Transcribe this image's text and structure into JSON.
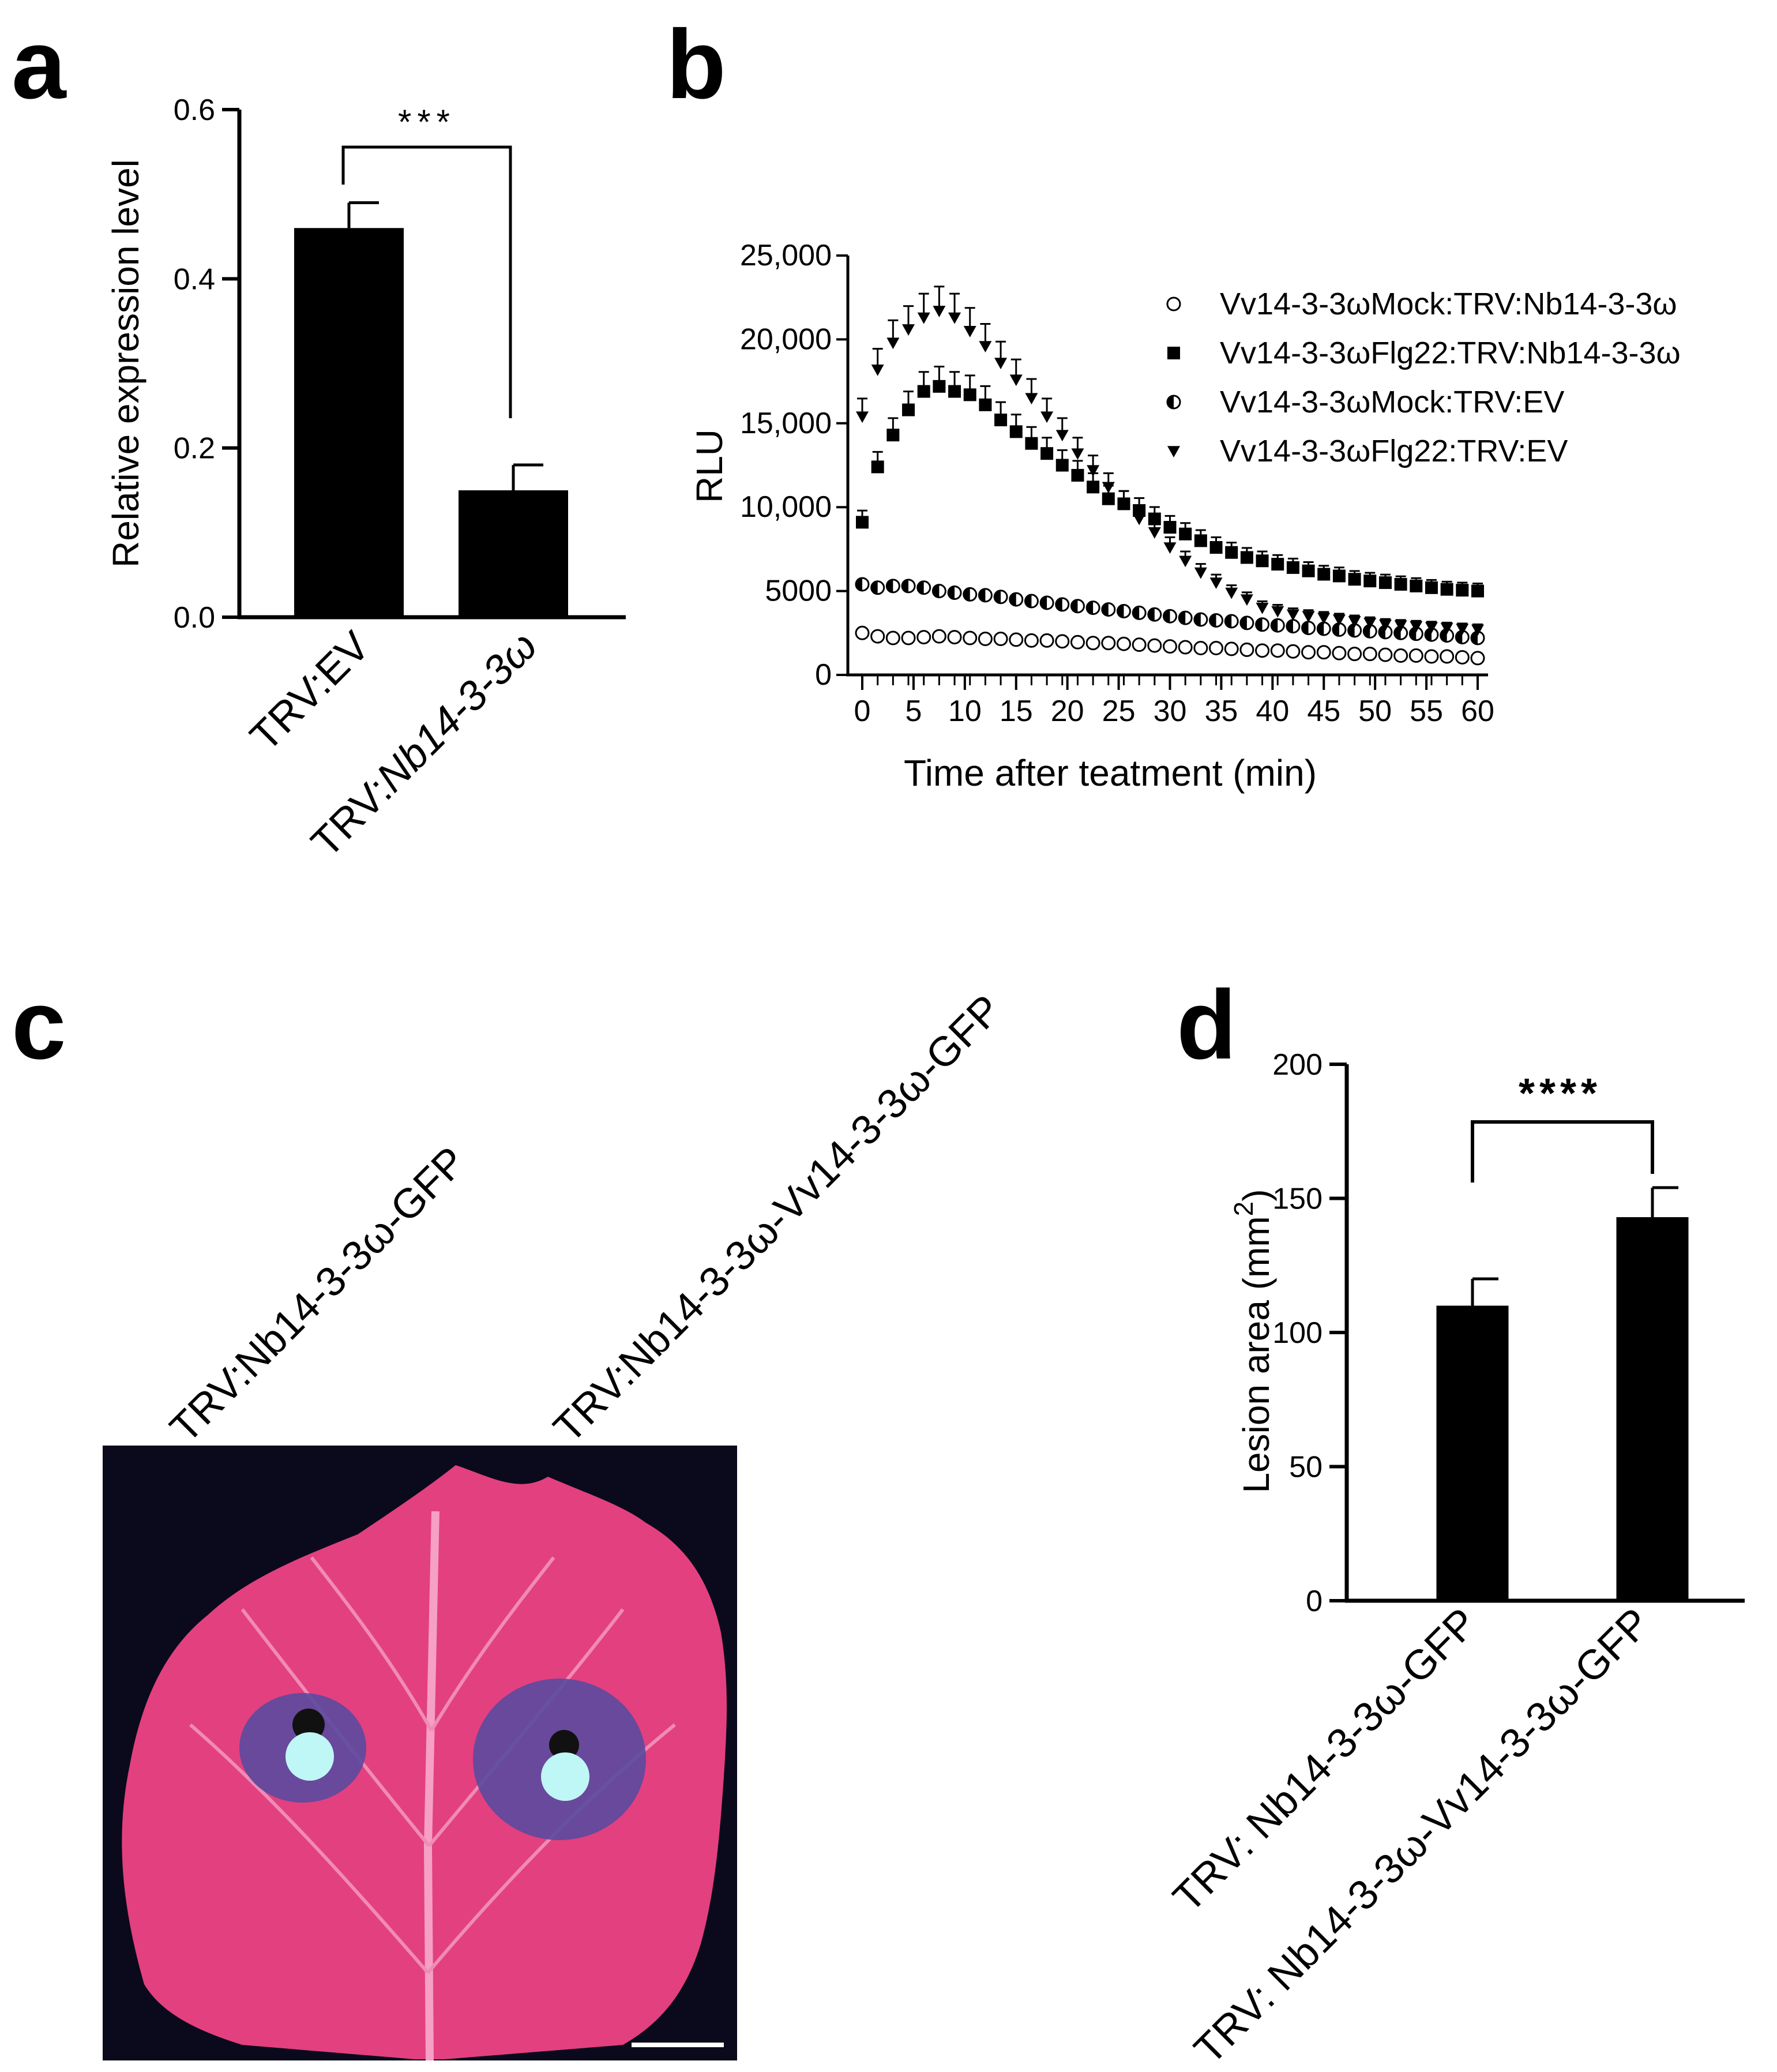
{
  "panel_labels": {
    "a": "a",
    "b": "b",
    "c": "c",
    "d": "d"
  },
  "chart_data": [
    {
      "panel": "a",
      "type": "bar",
      "title": "",
      "xlabel": "",
      "ylabel": "Relative expression level",
      "ylim": [
        0,
        0.6
      ],
      "yticks": [
        "0.0",
        "0.2",
        "0.4",
        "0.6"
      ],
      "yticks_values": [
        0,
        0.2,
        0.4,
        0.6
      ],
      "category_labels": [
        {
          "prefix": "TRV:",
          "name": "EV",
          "italic": false
        },
        {
          "prefix": "TRV:",
          "name": "Nb14-3-3ω",
          "italic": true
        }
      ],
      "values": [
        0.46,
        0.15
      ],
      "errors": [
        0.03,
        0.03
      ],
      "significance": "***"
    },
    {
      "panel": "b",
      "type": "scatter",
      "xlabel": "Time after teatment (min)",
      "ylabel": "RLU",
      "xlim": [
        0,
        60
      ],
      "ylim": [
        0,
        25000
      ],
      "xticks": [
        "0",
        "5",
        "10",
        "15",
        "20",
        "25",
        "30",
        "35",
        "40",
        "45",
        "50",
        "55",
        "60"
      ],
      "xticks_values": [
        0,
        5,
        10,
        15,
        20,
        25,
        30,
        35,
        40,
        45,
        50,
        55,
        60
      ],
      "yticks": [
        "0",
        "5000",
        "10,000",
        "15,000",
        "20,000",
        "25,000"
      ],
      "yticks_values": [
        0,
        5000,
        10000,
        15000,
        20000,
        25000
      ],
      "x": [
        0,
        1.5,
        3,
        4.5,
        6,
        7.5,
        9,
        10.5,
        12,
        13.5,
        15,
        16.5,
        18,
        19.5,
        21,
        22.5,
        24,
        25.5,
        27,
        28.5,
        30,
        31.5,
        33,
        34.5,
        36,
        37.5,
        39,
        40.5,
        42,
        43.5,
        45,
        46.5,
        48,
        49.5,
        51,
        52.5,
        54,
        55.5,
        57,
        58.5,
        60
      ],
      "series": [
        {
          "name": "Vv14-3-3ωMock:TRV:Nb14-3-3ω",
          "marker": "circle-open",
          "values": [
            2500,
            2300,
            2200,
            2200,
            2250,
            2300,
            2250,
            2200,
            2150,
            2150,
            2100,
            2050,
            2050,
            2000,
            1950,
            1900,
            1900,
            1850,
            1800,
            1750,
            1700,
            1650,
            1600,
            1600,
            1550,
            1500,
            1450,
            1450,
            1400,
            1350,
            1350,
            1300,
            1250,
            1250,
            1200,
            1150,
            1150,
            1100,
            1100,
            1050,
            1000
          ]
        },
        {
          "name": "Vv14-3-3ωFlg22:TRV:Nb14-3-3ω",
          "marker": "square",
          "values": [
            9100,
            12400,
            14300,
            15800,
            16900,
            17200,
            16900,
            16700,
            16100,
            15200,
            14500,
            13800,
            13200,
            12500,
            11900,
            11200,
            10500,
            10200,
            9800,
            9300,
            8800,
            8400,
            8000,
            7600,
            7300,
            7000,
            6800,
            6600,
            6400,
            6200,
            6000,
            5900,
            5700,
            5600,
            5500,
            5400,
            5300,
            5200,
            5100,
            5050,
            5000
          ]
        },
        {
          "name": "Vv14-3-3ωMock:TRV:EV",
          "marker": "circle-half",
          "values": [
            5400,
            5200,
            5300,
            5300,
            5200,
            5000,
            4900,
            4800,
            4750,
            4650,
            4500,
            4400,
            4300,
            4200,
            4100,
            4000,
            3900,
            3800,
            3700,
            3600,
            3500,
            3400,
            3300,
            3250,
            3200,
            3100,
            3000,
            2950,
            2900,
            2800,
            2750,
            2700,
            2650,
            2600,
            2550,
            2500,
            2450,
            2400,
            2350,
            2250,
            2200
          ]
        },
        {
          "name": "Vv14-3-3ωFlg22:TRV:EV",
          "marker": "triangle-down",
          "values": [
            15400,
            18200,
            19800,
            20600,
            21300,
            21700,
            21300,
            20500,
            19600,
            18600,
            17600,
            16500,
            15400,
            14300,
            13200,
            12200,
            11200,
            10200,
            9300,
            8500,
            7600,
            6800,
            6100,
            5500,
            4900,
            4500,
            4000,
            3800,
            3600,
            3500,
            3400,
            3300,
            3200,
            3100,
            3000,
            2950,
            2900,
            2850,
            2800,
            2750,
            2700
          ]
        }
      ]
    },
    {
      "panel": "d",
      "type": "bar",
      "ylabel": "Lesion area (mm",
      "ylabel_sup": "2",
      "ylabel_close": ")",
      "ylim": [
        0,
        200
      ],
      "yticks": [
        "0",
        "50",
        "100",
        "150",
        "200"
      ],
      "yticks_values": [
        0,
        50,
        100,
        150,
        200
      ],
      "categories": [
        "TRV: Nb14-3-3ω-GFP",
        "TRV: Nb14-3-3ω-Vv14-3-3ω-GFP"
      ],
      "values": [
        110,
        143
      ],
      "errors": [
        10,
        11
      ],
      "significance": "****"
    }
  ],
  "panel_c": {
    "labels": [
      "TRV:Nb14-3-3ω-GFP",
      "TRV:Nb14-3-3ω-Vv14-3-3ω-GFP"
    ],
    "leaf_colors": {
      "background": "#0b0a1c",
      "leaf": "#e3407f",
      "vein": "#f5a0c4",
      "lesion": "#5a4aa0",
      "spot": "#bff6f6"
    }
  }
}
